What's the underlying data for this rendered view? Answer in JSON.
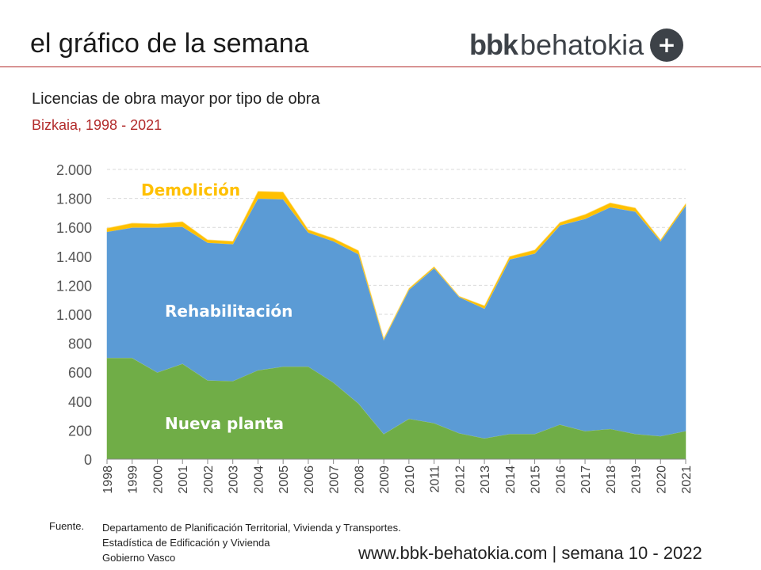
{
  "header": {
    "title": "el gráfico de la semana",
    "logo_bold": "bbk",
    "logo_light": "behatokia",
    "logo_plus": "+"
  },
  "subtitle": "Licencias de obra mayor por tipo de obra",
  "region": "Bizkaia, 1998 - 2021",
  "chart_data": {
    "type": "area",
    "stacked": true,
    "title": "Licencias de obra mayor por tipo de obra",
    "subtitle": "Bizkaia, 1998 - 2021",
    "xlabel": "",
    "ylabel": "",
    "ylim": [
      0,
      2000
    ],
    "yticks": [
      0,
      200,
      400,
      600,
      800,
      1000,
      1200,
      1400,
      1600,
      1800,
      2000
    ],
    "ytick_labels": [
      "0",
      "200",
      "400",
      "600",
      "800",
      "1.000",
      "1.200",
      "1.400",
      "1.600",
      "1.800",
      "2.000"
    ],
    "grid": true,
    "categories": [
      "1998",
      "1999",
      "2000",
      "2001",
      "2002",
      "2003",
      "2004",
      "2005",
      "2006",
      "2007",
      "2008",
      "2009",
      "2010",
      "2011",
      "2012",
      "2013",
      "2014",
      "2015",
      "2016",
      "2017",
      "2018",
      "2019",
      "2020",
      "2021"
    ],
    "series": [
      {
        "name": "Nueva planta",
        "color": "#70ad47",
        "values": [
          700,
          700,
          600,
          660,
          545,
          540,
          615,
          640,
          640,
          530,
          385,
          175,
          280,
          250,
          180,
          145,
          175,
          175,
          240,
          195,
          210,
          175,
          160,
          195
        ]
      },
      {
        "name": "Rehabilitación",
        "color": "#5b9bd5",
        "values": [
          870,
          900,
          1000,
          945,
          950,
          945,
          1185,
          1155,
          925,
          975,
          1030,
          650,
          890,
          1070,
          940,
          895,
          1205,
          1245,
          1375,
          1465,
          1530,
          1535,
          1345,
          1555
        ]
      },
      {
        "name": "Demolición",
        "color": "#ffc000",
        "values": [
          25,
          30,
          25,
          35,
          20,
          20,
          50,
          50,
          20,
          20,
          25,
          10,
          10,
          10,
          5,
          20,
          20,
          25,
          20,
          30,
          30,
          25,
          10,
          15
        ]
      }
    ],
    "annotations": [
      "Demolición",
      "Rehabilitación",
      "Nueva planta"
    ]
  },
  "source": {
    "label": "Fuente.",
    "lines": [
      "Departamento de Planificación Territorial, Vivienda y Transportes.",
      "Estadística de Edificación y Vivienda",
      "Gobierno Vasco"
    ]
  },
  "footer": "www.bbk-behatokia.com | semana 10 - 2022"
}
